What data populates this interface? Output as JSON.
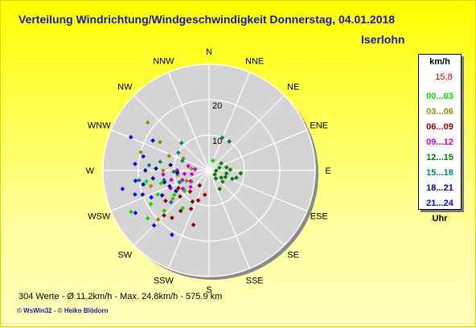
{
  "title": "Verteilung Windrichtung/Windgeschwindigkeit  Donnerstag, 04.01.2018",
  "location": "Iserlohn",
  "legend": {
    "unit": "km/h",
    "max": "15,8",
    "items": [
      {
        "label": "00...03",
        "color": "#00e000"
      },
      {
        "label": "03...06",
        "color": "#909000"
      },
      {
        "label": "06...09",
        "color": "#900000"
      },
      {
        "label": "09...12",
        "color": "#d000d0"
      },
      {
        "label": "12...15",
        "color": "#008000"
      },
      {
        "label": "15...18",
        "color": "#008080"
      },
      {
        "label": "18...21",
        "color": "#000090"
      },
      {
        "label": "21...24",
        "color": "#0000ff"
      }
    ],
    "footer": "Uhr"
  },
  "stats": "304 Werte   -   Ø 11,2km/h   -  Max. 24,8km/h   -   575.9 km",
  "credits": "© WsWin32  -  © Heiko Blödorn",
  "chart_data": {
    "type": "scatter",
    "coordinate_system": "polar",
    "radial_axis": {
      "unit": "km/h",
      "ticks": [
        10,
        20
      ],
      "max": 30
    },
    "directions": [
      "N",
      "NNE",
      "NE",
      "ENE",
      "E",
      "ESE",
      "SE",
      "SSE",
      "S",
      "SSW",
      "SW",
      "WSW",
      "W",
      "WNW",
      "NW",
      "NNW"
    ],
    "points": [
      {
        "h": "00...03",
        "pts": [
          [
            232,
            22
          ],
          [
            240,
            19
          ],
          [
            235,
            12
          ],
          [
            245,
            16
          ],
          [
            228,
            17
          ],
          [
            250,
            8
          ],
          [
            255,
            14
          ],
          [
            230,
            9
          ],
          [
            22,
            3
          ],
          [
            260,
            18
          ],
          [
            238,
            6
          ],
          [
            215,
            13
          ],
          [
            242,
            25
          ]
        ]
      },
      {
        "h": "03...06",
        "pts": [
          [
            300,
            16
          ],
          [
            290,
            12
          ],
          [
            285,
            20
          ],
          [
            270,
            13
          ],
          [
            262,
            9
          ],
          [
            308,
            22
          ],
          [
            255,
            17
          ],
          [
            245,
            7
          ],
          [
            232,
            13
          ],
          [
            226,
            20
          ],
          [
            276,
            5
          ],
          [
            295,
            8
          ]
        ]
      },
      {
        "h": "06...09",
        "pts": [
          [
            208,
            10
          ],
          [
            215,
            14
          ],
          [
            200,
            9
          ],
          [
            222,
            8
          ],
          [
            196,
            16
          ],
          [
            218,
            17
          ],
          [
            228,
            11
          ],
          [
            212,
            5
          ],
          [
            205,
            12
          ],
          [
            235,
            15
          ],
          [
            190,
            7
          ],
          [
            225,
            18
          ],
          [
            240,
            10
          ]
        ]
      },
      {
        "h": "09...12",
        "pts": [
          [
            250,
            8
          ],
          [
            262,
            7
          ],
          [
            240,
            6
          ],
          [
            270,
            9
          ],
          [
            282,
            6
          ],
          [
            256,
            11
          ],
          [
            228,
            7
          ],
          [
            245,
            12
          ],
          [
            265,
            13
          ],
          [
            235,
            9
          ],
          [
            275,
            4
          ],
          [
            258,
            5
          ]
        ]
      },
      {
        "h": "12...15",
        "pts": [
          [
            100,
            5
          ],
          [
            75,
            3
          ],
          [
            120,
            4
          ],
          [
            105,
            8
          ],
          [
            88,
            6
          ],
          [
            130,
            5
          ],
          [
            92,
            2
          ],
          [
            110,
            7
          ],
          [
            140,
            3
          ],
          [
            80,
            5
          ],
          [
            60,
            4
          ],
          [
            112,
            5
          ],
          [
            95,
            9
          ],
          [
            150,
            6
          ],
          [
            35,
            10
          ],
          [
            125,
            2
          ]
        ]
      },
      {
        "h": "15...18",
        "pts": [
          [
            300,
            10
          ],
          [
            280,
            14
          ],
          [
            268,
            10
          ],
          [
            258,
            13
          ],
          [
            315,
            11
          ],
          [
            275,
            17
          ],
          [
            290,
            8
          ],
          [
            262,
            20
          ],
          [
            230,
            14
          ],
          [
            22,
            10
          ],
          [
            248,
            9
          ]
        ]
      },
      {
        "h": "18...21",
        "pts": [
          [
            262,
            16
          ],
          [
            255,
            13
          ],
          [
            248,
            12
          ],
          [
            270,
            18
          ],
          [
            278,
            11
          ],
          [
            242,
            15
          ],
          [
            258,
            19
          ],
          [
            266,
            9
          ],
          [
            272,
            15
          ],
          [
            238,
            11
          ],
          [
            250,
            20
          ]
        ]
      },
      {
        "h": "21...24",
        "pts": [
          [
            275,
            21
          ],
          [
            293,
            24
          ],
          [
            252,
            22
          ],
          [
            240,
            24
          ],
          [
            225,
            22
          ],
          [
            258,
            25
          ],
          [
            282,
            19
          ],
          [
            262,
            21
          ],
          [
            245,
            18
          ],
          [
            298,
            18
          ],
          [
            210,
            21
          ]
        ]
      }
    ]
  }
}
